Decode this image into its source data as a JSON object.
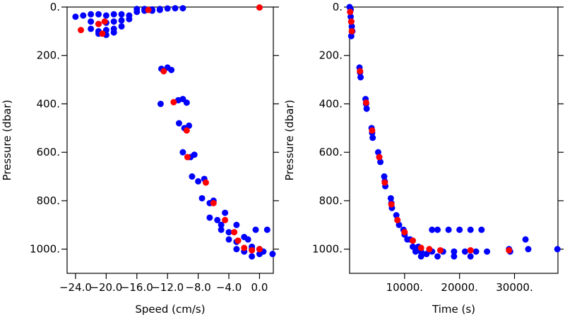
{
  "chart_data": [
    {
      "type": "scatter",
      "xlabel": "Speed (cm/s)",
      "ylabel": "Pressure (dbar)",
      "xlim": [
        -25.1,
        1.8
      ],
      "ylim": [
        1100,
        0
      ],
      "y_inverted": true,
      "xticks": [
        {
          "value": -24,
          "label": "−24.0"
        },
        {
          "value": -20,
          "label": "−20.0"
        },
        {
          "value": -16,
          "label": "−16.0"
        },
        {
          "value": -12,
          "label": "−12.0"
        },
        {
          "value": -8,
          "label": "−8.0"
        },
        {
          "value": -4,
          "label": "−4.0"
        },
        {
          "value": 0,
          "label": "0.0"
        }
      ],
      "yticks": [
        {
          "value": 0,
          "label": "0."
        },
        {
          "value": 200,
          "label": "200."
        },
        {
          "value": 400,
          "label": "400."
        },
        {
          "value": 600,
          "label": "600."
        },
        {
          "value": 800,
          "label": "800."
        },
        {
          "value": 1000,
          "label": "1000."
        }
      ],
      "series": [
        {
          "color": "#0000ff",
          "x": [
            -24,
            -23,
            -22,
            -21,
            -20,
            -19,
            -18,
            -17,
            -16,
            -15,
            -14,
            -13,
            -22,
            -21,
            -20,
            -19,
            -18,
            -17,
            -22,
            -21,
            -20,
            -19,
            -18,
            -21,
            -20,
            -19,
            -16,
            -15,
            -14,
            -13,
            -12,
            -11,
            -10,
            -12.8,
            -12,
            -11.5,
            -10.6,
            -10,
            -9.5,
            -10.5,
            -9.8,
            -9.2,
            -10,
            -9,
            -8.5,
            -8.8,
            -8,
            -7.2,
            -7.5,
            -6.5,
            -6,
            -6.5,
            -5.5,
            -4.5,
            -5,
            -5,
            -4,
            -3,
            -1.5,
            -4,
            -3,
            -2,
            -1,
            -3,
            -2,
            -1,
            0,
            0.5,
            -1,
            0,
            1,
            -0.5,
            1.7,
            -12.9
          ],
          "values": [
            40,
            35,
            30,
            30,
            35,
            30,
            30,
            35,
            20,
            15,
            15,
            12,
            60,
            70,
            65,
            60,
            55,
            50,
            90,
            100,
            95,
            90,
            80,
            110,
            115,
            105,
            8,
            8,
            10,
            8,
            6,
            5,
            5,
            255,
            250,
            260,
            385,
            380,
            395,
            480,
            500,
            490,
            600,
            620,
            610,
            700,
            720,
            710,
            790,
            810,
            800,
            870,
            880,
            850,
            900,
            920,
            930,
            900,
            960,
            960,
            970,
            950,
            990,
            1000,
            1010,
            1000,
            1020,
            1010,
            1030,
            1000,
            920,
            920,
            1020,
            400
          ]
        },
        {
          "color": "#ff0000",
          "x": [
            -23.3,
            -21,
            -20.2,
            -20.5,
            -14.5,
            -12.5,
            -11.2,
            -9.5,
            -9.4,
            -7,
            -6,
            -4.5,
            -3.3,
            -2.8,
            -2,
            -1,
            0,
            0
          ],
          "values": [
            95,
            70,
            60,
            110,
            12,
            265,
            393,
            510,
            620,
            725,
            810,
            880,
            930,
            965,
            995,
            1005,
            1000,
            2
          ]
        }
      ]
    },
    {
      "type": "scatter",
      "xlabel": "Time (s)",
      "ylabel": "Pressure (dbar)",
      "xlim": [
        0,
        37900
      ],
      "ylim": [
        1100,
        0
      ],
      "y_inverted": true,
      "xticks": [
        {
          "value": 10000,
          "label": "10000."
        },
        {
          "value": 20000,
          "label": "20000."
        },
        {
          "value": 30000,
          "label": "30000."
        }
      ],
      "yticks": [
        {
          "value": 0,
          "label": "0."
        },
        {
          "value": 200,
          "label": "200."
        },
        {
          "value": 400,
          "label": "400."
        },
        {
          "value": 600,
          "label": "600."
        },
        {
          "value": 800,
          "label": "800."
        },
        {
          "value": 1000,
          "label": "1000."
        }
      ],
      "series": [
        {
          "color": "#0000ff",
          "x": [
            0,
            100,
            200,
            300,
            400,
            500,
            200,
            300,
            1800,
            1900,
            2000,
            2900,
            3000,
            3100,
            4000,
            4100,
            4200,
            5200,
            5400,
            5600,
            6300,
            6400,
            6500,
            7500,
            7600,
            7700,
            8500,
            8700,
            9000,
            9800,
            10000,
            10500,
            11000,
            11500,
            12000,
            12500,
            13000,
            14000,
            15000,
            16000,
            18000,
            20000,
            22000,
            24000,
            15000,
            17000,
            19000,
            21000,
            23000,
            13000,
            16000,
            19000,
            22000,
            25000,
            29000,
            29200,
            32000,
            32500,
            37800
          ],
          "values": [
            0,
            20,
            40,
            60,
            80,
            100,
            10,
            120,
            250,
            270,
            290,
            380,
            400,
            420,
            500,
            520,
            540,
            600,
            620,
            640,
            700,
            720,
            740,
            790,
            810,
            830,
            860,
            880,
            900,
            920,
            940,
            960,
            960,
            990,
            1010,
            990,
            1010,
            1020,
            920,
            920,
            920,
            920,
            920,
            920,
            1010,
            1010,
            1010,
            1010,
            1010,
            1030,
            1030,
            1030,
            1030,
            1010,
            1000,
            1010,
            960,
            1000,
            1000
          ]
        },
        {
          "color": "#ff0000",
          "x": [
            100,
            300,
            400,
            1900,
            3000,
            4100,
            5400,
            6400,
            7600,
            8700,
            10000,
            11500,
            13000,
            14500,
            16500,
            22000,
            29000
          ],
          "values": [
            20,
            60,
            100,
            265,
            395,
            510,
            620,
            725,
            815,
            880,
            930,
            965,
            995,
            1000,
            1005,
            1005,
            1005
          ]
        }
      ]
    }
  ]
}
